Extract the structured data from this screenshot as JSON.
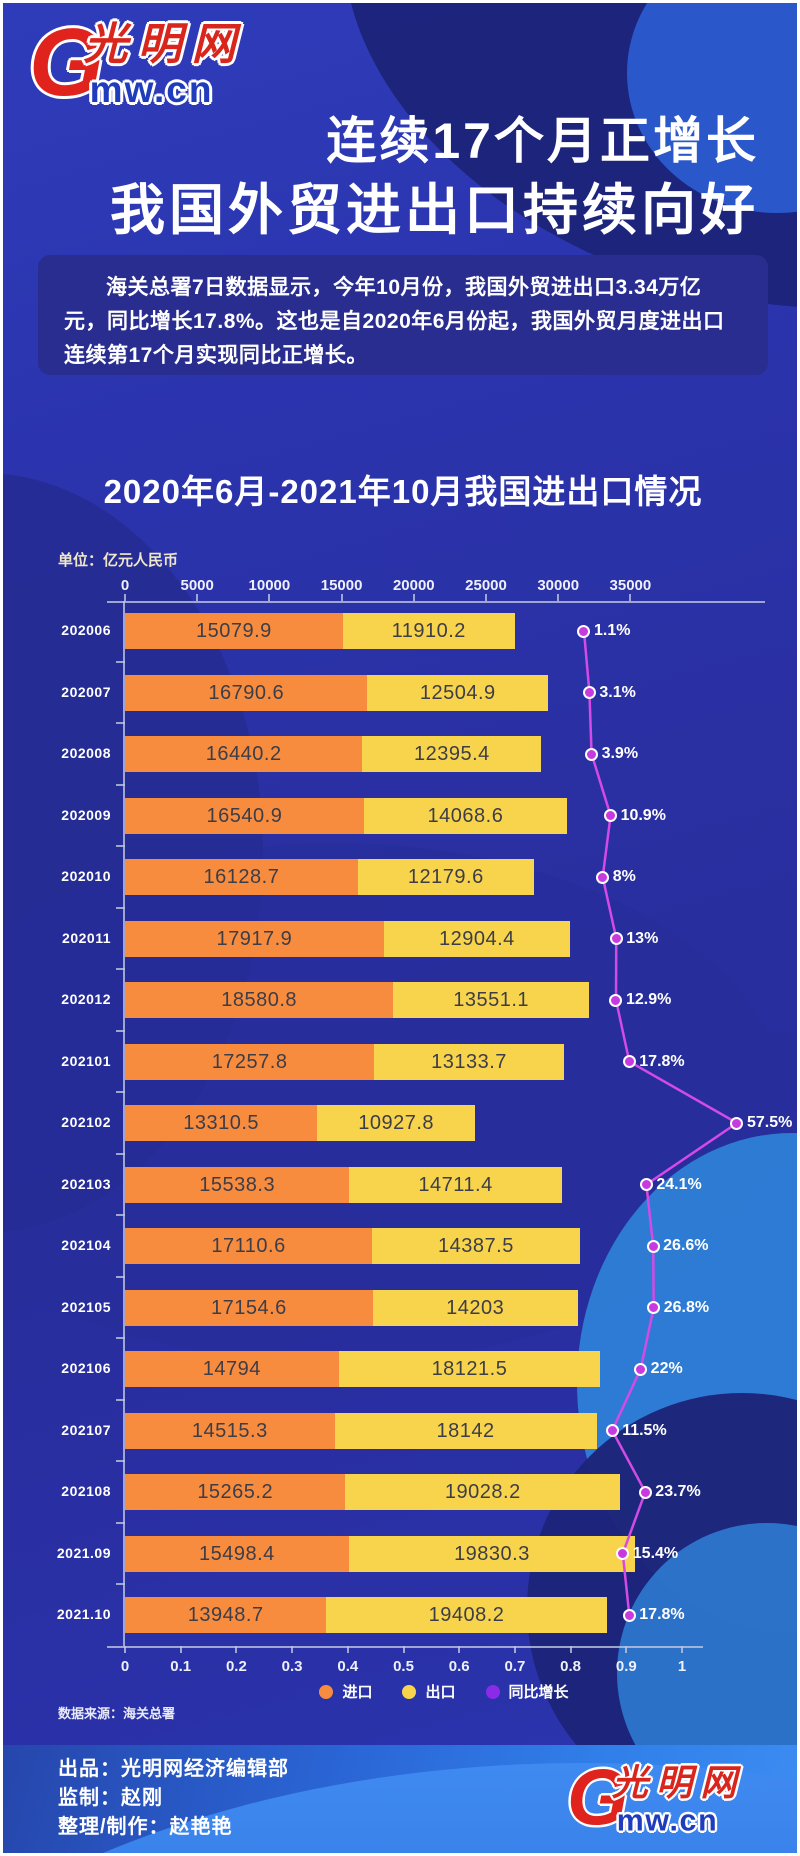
{
  "logo": {
    "g": "G",
    "brand_cn": "光明网",
    "brand_en": "mw.cn"
  },
  "header": {
    "title_line1": "连续17个月正增长",
    "title_line2": "我国外贸进出口持续向好",
    "intro": "海关总署7日数据显示，今年10月份，我国外贸进出口3.34万亿元，同比增长17.8%。这也是自2020年6月份起，我国外贸月度进出口连续第17个月实现同比正增长。"
  },
  "chart": {
    "title": "2020年6月-2021年10月我国进出口情况",
    "unit_label": "单位：亿元人民币",
    "source": "数据来源：海关总署",
    "legend": [
      {
        "label": "进口",
        "color": "#F78C3E"
      },
      {
        "label": "出口",
        "color": "#F8D44C"
      },
      {
        "label": "同比增长",
        "color": "#8B2BE8"
      }
    ]
  },
  "chart_data": {
    "type": "bar",
    "orientation": "horizontal-stacked",
    "title": "2020年6月-2021年10月我国进出口情况",
    "unit": "亿元人民币",
    "categories": [
      "202006",
      "202007",
      "202008",
      "202009",
      "202010",
      "202011",
      "202012",
      "202101",
      "202102",
      "202103",
      "202104",
      "202105",
      "202106",
      "202107",
      "202108",
      "2021.09",
      "2021.10"
    ],
    "series": [
      {
        "name": "进口",
        "color": "#F78C3E",
        "values": [
          15079.9,
          16790.6,
          16440.2,
          16540.9,
          16128.7,
          17917.9,
          18580.8,
          17257.8,
          13310.5,
          15538.3,
          17110.6,
          17154.6,
          14794,
          14515.3,
          15265.2,
          15498.4,
          13948.7
        ]
      },
      {
        "name": "出口",
        "color": "#F8D44C",
        "values": [
          11910.2,
          12504.9,
          12395.4,
          14068.6,
          12179.6,
          12904.4,
          13551.1,
          13133.7,
          10927.8,
          14711.4,
          14387.5,
          14203,
          18121.5,
          18142,
          19028.2,
          19830.3,
          19408.2
        ]
      }
    ],
    "line_series": {
      "name": "同比增长",
      "unit": "%",
      "color": "#D44AE6",
      "marker_color": "#C83AE0",
      "values": [
        1.1,
        3.1,
        3.9,
        10.9,
        8,
        13,
        12.9,
        17.8,
        57.5,
        24.1,
        26.6,
        26.8,
        22,
        11.5,
        23.7,
        15.4,
        17.8
      ]
    },
    "value_axis": {
      "position": "top",
      "min": 0,
      "max": 40000,
      "tick_step": 5000,
      "ticks": [
        "0",
        "5000",
        "10000",
        "15000",
        "20000",
        "25000",
        "30000",
        "35000"
      ]
    },
    "secondary_axis": {
      "position": "bottom",
      "ticks": [
        "0",
        "0.1",
        "0.2",
        "0.3",
        "0.4",
        "0.5",
        "0.6",
        "0.7",
        "0.8",
        "0.9",
        "1"
      ]
    },
    "legend_position": "bottom",
    "grid": false
  },
  "footer": {
    "produce": "出品：光明网经济编辑部",
    "supervise": "监制：赵刚",
    "editor": "整理/制作：赵艳艳"
  }
}
